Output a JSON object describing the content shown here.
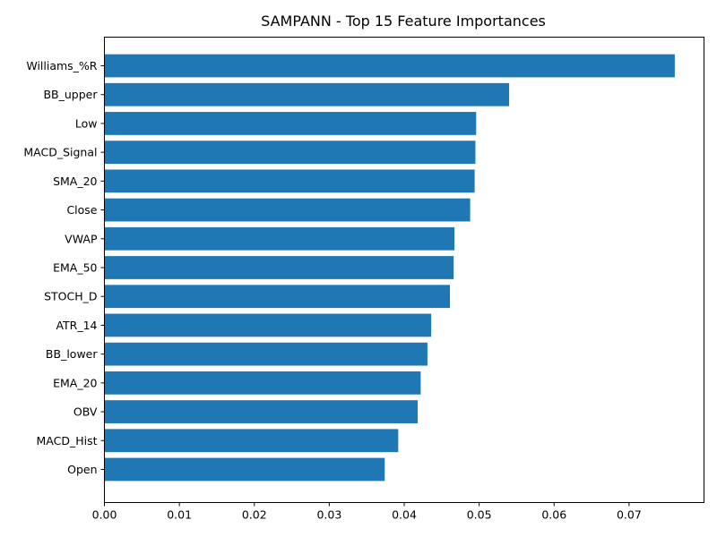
{
  "chart_data": {
    "type": "bar",
    "orientation": "horizontal",
    "title": "SAMPANN - Top 15 Feature Importances",
    "xlabel": "",
    "ylabel": "",
    "categories": [
      "Williams_%R",
      "BB_upper",
      "Low",
      "MACD_Signal",
      "SMA_20",
      "Close",
      "VWAP",
      "EMA_50",
      "STOCH_D",
      "ATR_14",
      "BB_lower",
      "EMA_20",
      "OBV",
      "MACD_Hist",
      "Open"
    ],
    "values": [
      0.0761,
      0.054,
      0.0496,
      0.0495,
      0.0494,
      0.0488,
      0.0467,
      0.0466,
      0.0461,
      0.0436,
      0.0431,
      0.0422,
      0.0418,
      0.0392,
      0.0374
    ],
    "xlim": [
      0,
      0.08
    ],
    "xticks": [
      0.0,
      0.01,
      0.02,
      0.03,
      0.04,
      0.05,
      0.06,
      0.07
    ],
    "xtick_labels": [
      "0.00",
      "0.01",
      "0.02",
      "0.03",
      "0.04",
      "0.05",
      "0.06",
      "0.07"
    ],
    "grid": false,
    "bar_color": "#1f77b4"
  }
}
